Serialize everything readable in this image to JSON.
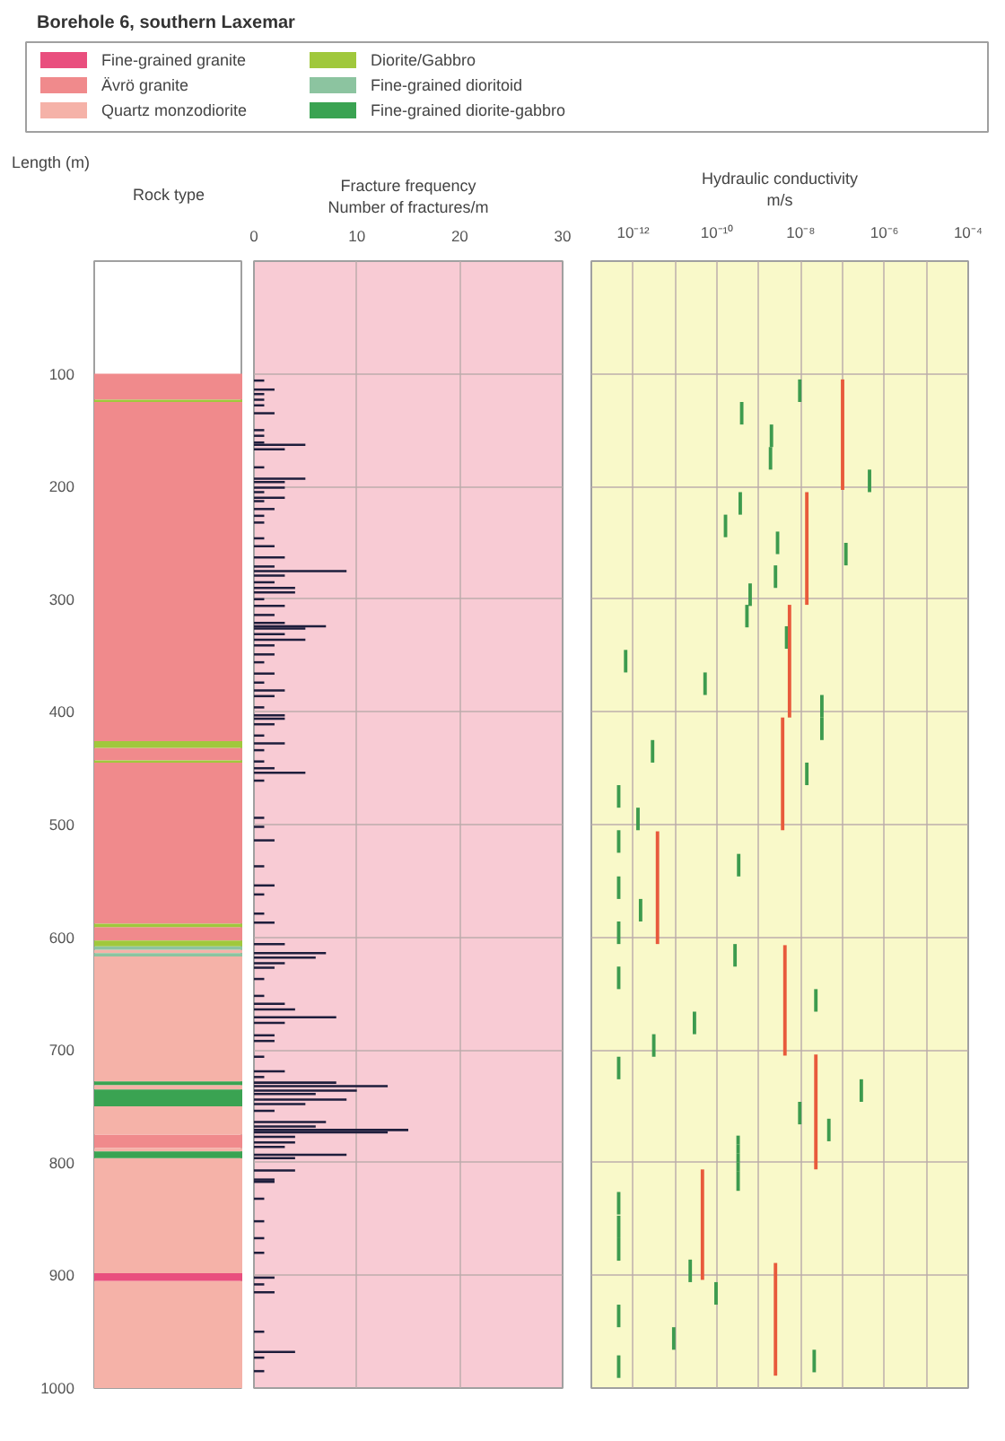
{
  "chart_data": [
    {
      "type": "bar",
      "title": "Borehole 6, southern Laxemar",
      "ylabel": "Length (m)",
      "categories": [
        "Rock type"
      ],
      "ylim": [
        1000,
        0
      ],
      "yticks": [
        100,
        200,
        300,
        400,
        500,
        600,
        700,
        800,
        900,
        1000
      ],
      "legend": "top",
      "series": [
        {
          "name": "Fine-grained granite",
          "color": "#e94f7e",
          "x": [
            "Rock type"
          ],
          "base": [
            898
          ],
          "values": [
            7
          ]
        },
        {
          "name": "Ävrö granite",
          "color": "#f08a8c",
          "x": [
            "Rock type",
            "Rock type",
            "Rock type",
            "Rock type",
            "Rock type",
            "Rock type"
          ],
          "base": [
            100,
            125,
            432,
            445,
            591,
            775
          ],
          "values": [
            23,
            301,
            11,
            143,
            12,
            12
          ]
        },
        {
          "name": "Quartz monzodiorite",
          "color": "#f5b2a8",
          "x": [
            "Rock type",
            "Rock type",
            "Rock type",
            "Rock type",
            "Rock type",
            "Rock type",
            "Rock type"
          ],
          "base": [
            611,
            617,
            731,
            750,
            787,
            796,
            905
          ],
          "values": [
            3,
            111,
            4,
            25,
            3,
            102,
            95
          ]
        },
        {
          "name": "Diorite/Gabbro",
          "color": "#a0c83c",
          "x": [
            "Rock type",
            "Rock type",
            "Rock type",
            "Rock type",
            "Rock type"
          ],
          "base": [
            123,
            426,
            443,
            588,
            603
          ],
          "values": [
            2,
            6,
            2,
            3,
            5
          ]
        },
        {
          "name": "Fine-grained dioritoid",
          "color": "#8cc4a0",
          "x": [
            "Rock type",
            "Rock type"
          ],
          "base": [
            608,
            614
          ],
          "values": [
            3,
            3
          ]
        },
        {
          "name": "Fine-grained diorite-gabbro",
          "color": "#3aa352",
          "x": [
            "Rock type",
            "Rock type",
            "Rock type"
          ],
          "base": [
            728,
            735,
            790
          ],
          "values": [
            3,
            15,
            6
          ]
        }
      ]
    },
    {
      "type": "bar",
      "orientation": "horizontal",
      "xlabel": "Fracture frequency\nNumber of fractures/m",
      "xlim": [
        0,
        30
      ],
      "xticks": [
        0,
        10,
        20,
        30
      ],
      "ylim": [
        1000,
        0
      ],
      "yticks": [
        100,
        200,
        300,
        400,
        500,
        600,
        700,
        800,
        900,
        1000
      ],
      "grid": true,
      "tick_labels": "x",
      "color": "#1e1e3c",
      "x": [
        106,
        114,
        118,
        123,
        128,
        135,
        150,
        155,
        161,
        163,
        167,
        183,
        193,
        196,
        201,
        205,
        210,
        213,
        220,
        226,
        232,
        246,
        253,
        263,
        271,
        275,
        279,
        285,
        290,
        294,
        300,
        306,
        314,
        321,
        324,
        326,
        331,
        336,
        341,
        349,
        356,
        366,
        374,
        381,
        386,
        396,
        403,
        406,
        411,
        421,
        428,
        434,
        444,
        450,
        454,
        461,
        494,
        502,
        514,
        537,
        554,
        562,
        579,
        587,
        606,
        614,
        618,
        623,
        627,
        637,
        652,
        659,
        664,
        671,
        676,
        687,
        692,
        706,
        719,
        724,
        729,
        732,
        736,
        739,
        744,
        748,
        754,
        764,
        768,
        771,
        773,
        777,
        782,
        786,
        793,
        796,
        807,
        815,
        817,
        832,
        852,
        867,
        880,
        902,
        908,
        915,
        950,
        968,
        973,
        985
      ],
      "values": [
        1,
        2,
        1,
        1,
        1,
        2,
        1,
        1,
        1,
        5,
        3,
        1,
        5,
        3,
        3,
        1,
        3,
        1,
        2,
        1,
        1,
        1,
        2,
        3,
        2,
        9,
        3,
        2,
        4,
        4,
        1,
        3,
        2,
        3,
        7,
        5,
        3,
        5,
        2,
        2,
        1,
        2,
        1,
        3,
        2,
        1,
        3,
        3,
        2,
        1,
        3,
        1,
        1,
        2,
        5,
        1,
        1,
        1,
        2,
        1,
        2,
        1,
        1,
        2,
        3,
        7,
        6,
        3,
        2,
        1,
        1,
        3,
        4,
        8,
        3,
        2,
        2,
        1,
        3,
        1,
        8,
        13,
        10,
        6,
        9,
        5,
        2,
        7,
        6,
        15,
        13,
        4,
        4,
        3,
        9,
        4,
        4,
        2,
        2,
        1,
        1,
        1,
        1,
        2,
        1,
        2,
        1,
        4,
        1,
        1
      ]
    },
    {
      "type": "bar",
      "xlabel": "Hydraulic conductivity\nm/s",
      "log": "x",
      "xlim": [
        1e-13,
        0.0001
      ],
      "xticks": [
        {
          "value": 1e-12,
          "label": "10⁻¹²"
        },
        {
          "value": 1e-11,
          "label": null
        },
        {
          "value": 1e-10,
          "label": "10⁻¹⁰"
        },
        {
          "value": 1e-09,
          "label": null
        },
        {
          "value": 1e-08,
          "label": "10⁻⁸"
        },
        {
          "value": 1e-07,
          "label": null
        },
        {
          "value": 1e-06,
          "label": "10⁻⁶"
        },
        {
          "value": 1e-05,
          "label": null
        },
        {
          "value": 0.0001,
          "label": "10⁻⁴"
        }
      ],
      "ylim": [
        1000,
        0
      ],
      "yticks": [
        100,
        200,
        300,
        400,
        500,
        600,
        700,
        800,
        900,
        1000
      ],
      "grid": true,
      "tick_labels": "x",
      "series": [
        {
          "color": "#3d9b4e",
          "x": [
            4.5e-13,
            6.6e-13,
            1.3e-12,
            1.5e-12,
            2.9e-12,
            3.1e-12,
            9.3e-12,
            2.3e-11,
            2.9e-11,
            5.2e-11,
            9.5e-11,
            1.6e-10,
            2.7e-10,
            3.2e-10,
            3.3e-10,
            3.6e-10,
            3.9e-10,
            5.2e-10,
            6.2e-10,
            1.9e-09,
            2e-09,
            2.5e-09,
            2.8e-09,
            4.6e-09,
            9.5e-09,
            1.4e-08,
            2.1e-08,
            2.3e-08,
            3.2e-08,
            4.7e-08,
            1.2e-07,
            2.8e-07,
            4.4e-07
          ],
          "base": [
            465,
            345,
            485,
            566,
            425,
            686,
            946,
            886,
            666,
            365,
            906,
            225,
            606,
            776,
            526,
            205,
            125,
            305,
            286,
            165,
            145,
            270,
            240,
            324,
            105,
            445,
            966,
            646,
            385,
            761,
            250,
            726,
            185
          ],
          "values": [
            20,
            20,
            20,
            20,
            20,
            20,
            20,
            20,
            20,
            20,
            20,
            20,
            20,
            8,
            20,
            20,
            20,
            20,
            20,
            20,
            20,
            20,
            20,
            20,
            20,
            20,
            20,
            20,
            20,
            20,
            20,
            20,
            20
          ]
        },
        {
          "color": "#3d9b4e",
          "x": [
            4.5e-13,
            3.2e-10,
            9.5e-09,
            3.2e-08
          ],
          "base": [
            505,
            784,
            746,
            405
          ],
          "values": [
            20,
            8,
            20,
            20
          ]
        },
        {
          "color": "#3d9b4e",
          "x": [
            4.5e-13,
            3.2e-10
          ],
          "base": [
            546,
            792
          ],
          "values": [
            20,
            8
          ]
        },
        {
          "color": "#3d9b4e",
          "x": [
            4.5e-13,
            3.2e-10
          ],
          "base": [
            586,
            800
          ],
          "values": [
            20,
            8
          ]
        },
        {
          "color": "#3d9b4e",
          "x": [
            4.5e-13,
            3.2e-10
          ],
          "base": [
            626,
            808
          ],
          "values": [
            20,
            17
          ]
        },
        {
          "color": "#3d9b4e",
          "x": [
            4.5e-13
          ],
          "base": [
            706
          ],
          "values": [
            20
          ]
        },
        {
          "color": "#3d9b4e",
          "x": [
            4.5e-13
          ],
          "base": [
            826
          ],
          "values": [
            20
          ]
        },
        {
          "color": "#3d9b4e",
          "x": [
            4.5e-13
          ],
          "base": [
            847
          ],
          "values": [
            20
          ]
        },
        {
          "color": "#3d9b4e",
          "x": [
            4.5e-13
          ],
          "base": [
            867
          ],
          "values": [
            20
          ]
        },
        {
          "color": "#3d9b4e",
          "x": [
            4.5e-13
          ],
          "base": [
            926
          ],
          "values": [
            20
          ]
        },
        {
          "color": "#3d9b4e",
          "x": [
            4.5e-13
          ],
          "base": [
            971
          ],
          "values": [
            20
          ]
        },
        {
          "color": "#e85a3c",
          "x": [
            3.8e-12,
            4.5e-11,
            2.5e-09,
            3.7e-09,
            4.2e-09,
            5.4e-09,
            1.4e-08,
            2.3e-08,
            1e-07
          ],
          "base": [
            506,
            806,
            889,
            405,
            607,
            305,
            205,
            704,
            105
          ],
          "values": [
            100,
            98,
            100,
            100,
            98,
            100,
            100,
            102,
            98
          ]
        }
      ]
    }
  ]
}
